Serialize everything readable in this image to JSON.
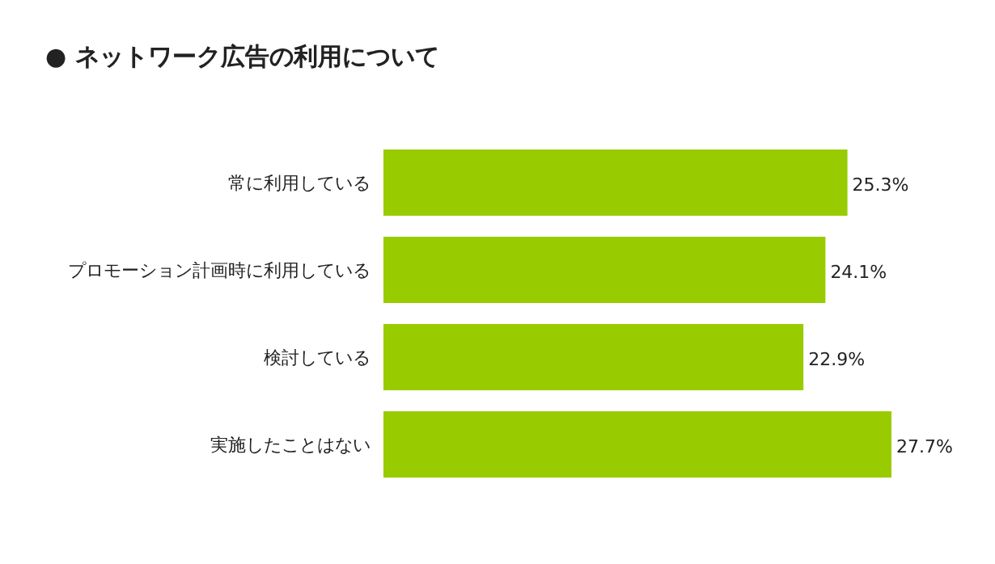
{
  "chart_data": {
    "type": "bar",
    "orientation": "horizontal",
    "title": "● ネットワーク広告の利用について",
    "categories": [
      "常に利用している",
      "プロモーション計画時に利用している",
      "検討している",
      "実施したことはない"
    ],
    "values": [
      25.3,
      24.1,
      22.9,
      27.7
    ],
    "value_labels": [
      "25.3%",
      "24.1%",
      "22.9%",
      "27.7%"
    ],
    "color": "#99cc00",
    "relative": false
  }
}
